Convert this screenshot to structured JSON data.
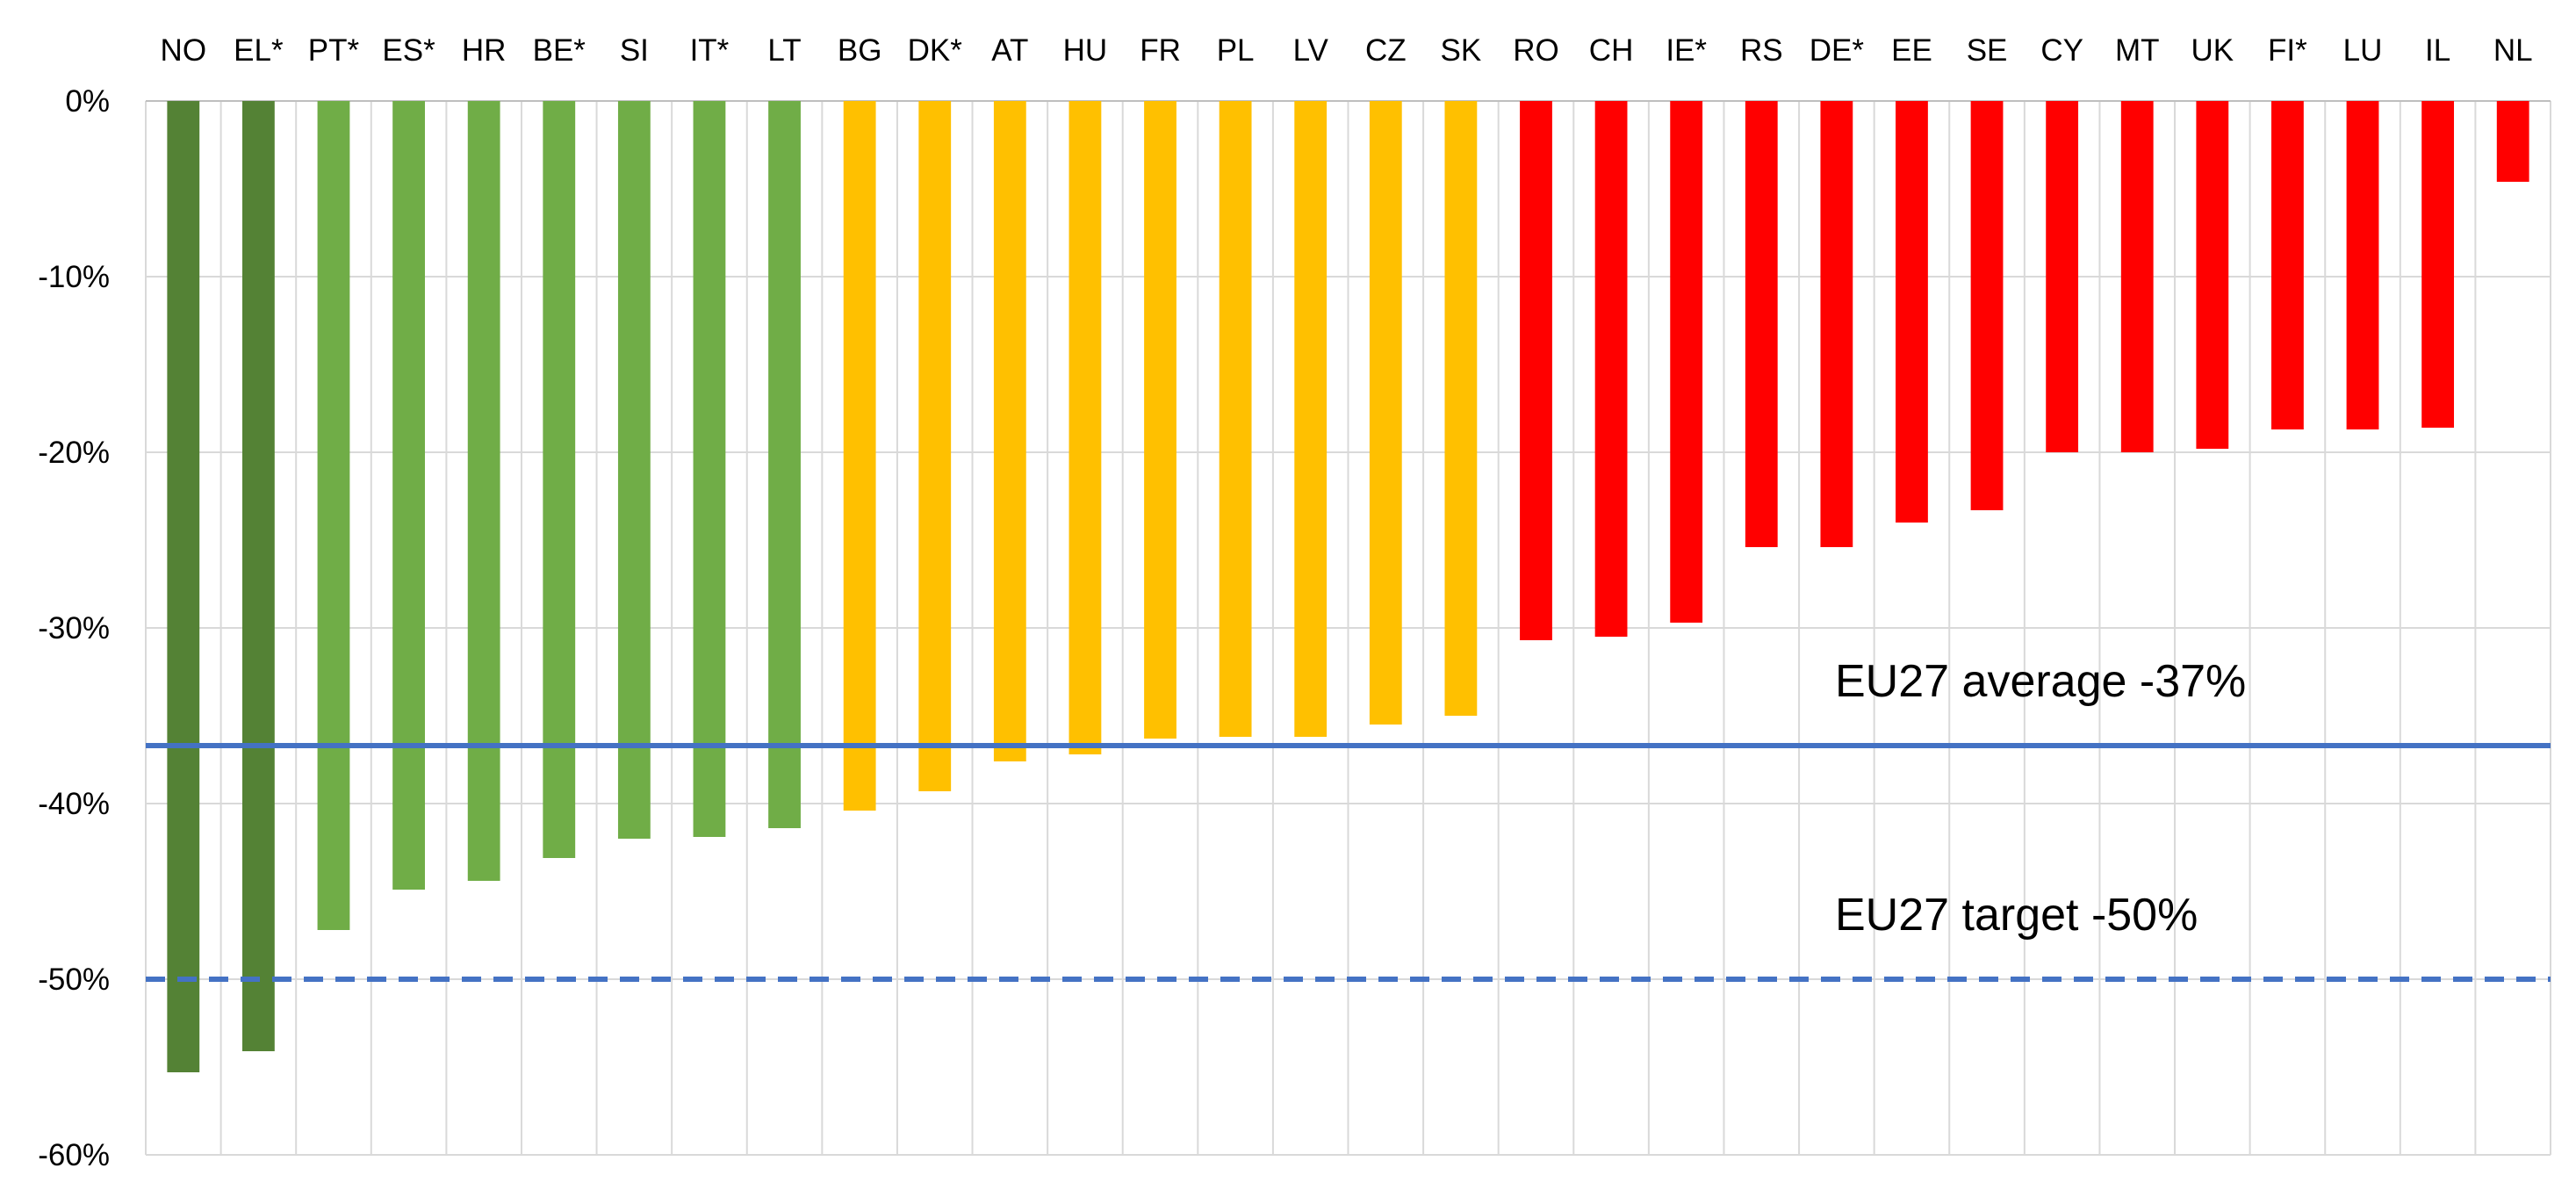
{
  "chart_data": {
    "type": "bar",
    "title": "",
    "xlabel": "",
    "ylabel": "",
    "categories": [
      "NO",
      "EL*",
      "PT*",
      "ES*",
      "HR",
      "BE*",
      "SI",
      "IT*",
      "LT",
      "BG",
      "DK*",
      "AT",
      "HU",
      "FR",
      "PL",
      "LV",
      "CZ",
      "SK",
      "RO",
      "CH",
      "IE*",
      "RS",
      "DE*",
      "EE",
      "SE",
      "CY",
      "MT",
      "UK",
      "FI*",
      "LU",
      "IL",
      "NL"
    ],
    "values": [
      -55.3,
      -54.1,
      -47.2,
      -44.9,
      -44.4,
      -43.1,
      -42.0,
      -41.9,
      -41.4,
      -40.4,
      -39.3,
      -37.6,
      -37.2,
      -36.3,
      -36.2,
      -36.2,
      -35.5,
      -35.0,
      -30.7,
      -30.5,
      -29.7,
      -25.4,
      -25.4,
      -24.0,
      -23.3,
      -20.0,
      -20.0,
      -19.8,
      -18.7,
      -18.7,
      -18.6,
      -4.6
    ],
    "bar_colors": [
      "#548235",
      "#548235",
      "#70ad47",
      "#70ad47",
      "#70ad47",
      "#70ad47",
      "#70ad47",
      "#70ad47",
      "#70ad47",
      "#ffc000",
      "#ffc000",
      "#ffc000",
      "#ffc000",
      "#ffc000",
      "#ffc000",
      "#ffc000",
      "#ffc000",
      "#ffc000",
      "#ff0000",
      "#ff0000",
      "#ff0000",
      "#ff0000",
      "#ff0000",
      "#ff0000",
      "#ff0000",
      "#ff0000",
      "#ff0000",
      "#ff0000",
      "#ff0000",
      "#ff0000",
      "#ff0000",
      "#ff0000"
    ],
    "ylim": [
      -60,
      0
    ],
    "yticks": [
      0,
      -10,
      -20,
      -30,
      -40,
      -50,
      -60
    ],
    "ytick_labels": [
      "0%",
      "-10%",
      "-20%",
      "-30%",
      "-40%",
      "-50%",
      "-60%"
    ],
    "x_axis_position": "top",
    "grid": true,
    "reference_lines": [
      {
        "label": "EU27 average -37%",
        "value": -36.7,
        "style": "solid",
        "color": "#4472c4"
      },
      {
        "label": "EU27 target -50%",
        "value": -50,
        "style": "dashed",
        "color": "#4472c4"
      }
    ]
  }
}
